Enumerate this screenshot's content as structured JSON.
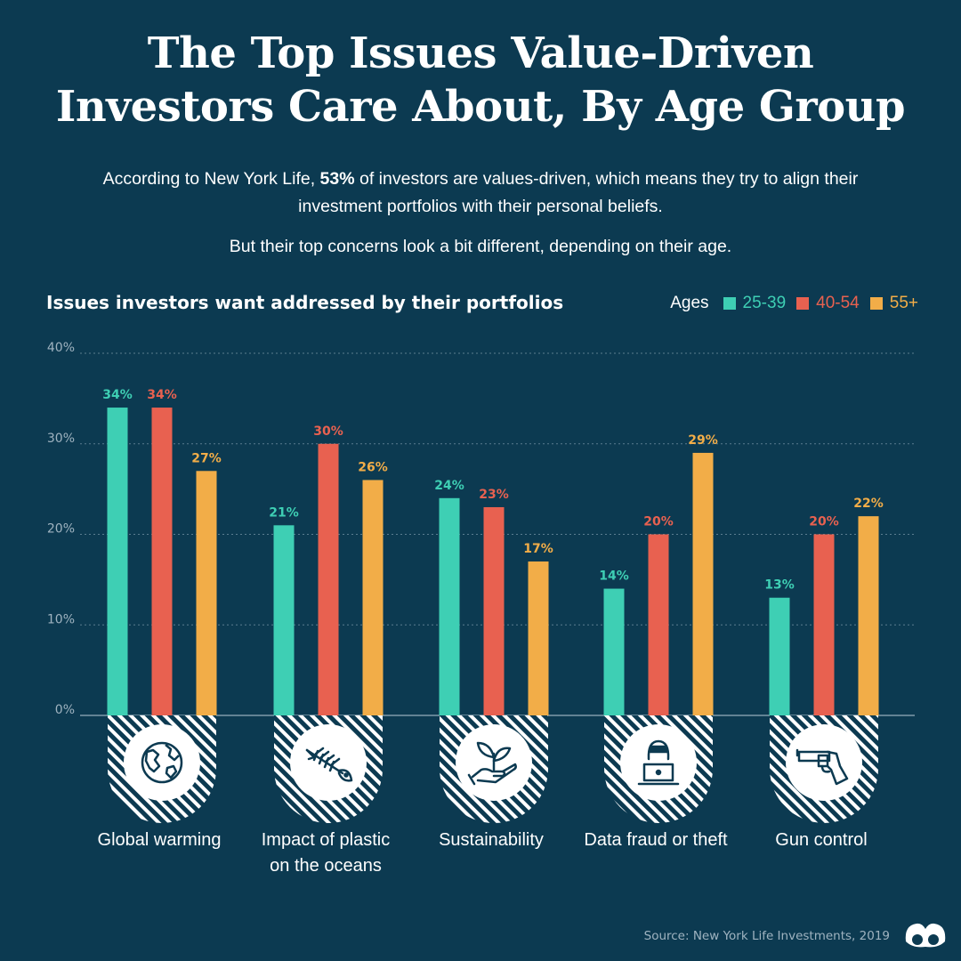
{
  "header": {
    "title_line1": "The Top Issues Value-Driven",
    "title_line2": "Investors Care About, By Age Group",
    "intro_pre": "According to New York Life, ",
    "intro_pct": "53%",
    "intro_post": " of investors are values-driven, which means they try to align their investment portfolios with their personal beliefs.",
    "intro2": "But their top concerns look a bit different, depending on their age."
  },
  "legend": {
    "prefix": "Ages",
    "items": [
      "25-39",
      "40-54",
      "55+"
    ]
  },
  "source": "Source: New York Life Investments, 2019",
  "colors": {
    "background": "#0c3a51",
    "age_25_39": "#3ecfb4",
    "age_40_54": "#e86150",
    "age_55_plus": "#f2ad48"
  },
  "icons": [
    "globe-icon",
    "fish-skeleton-icon",
    "plant-in-hand-icon",
    "hacker-laptop-icon",
    "revolver-icon"
  ],
  "chart_data": {
    "type": "bar",
    "title": "Issues investors want addressed by their portfolios",
    "categories": [
      "Global warming",
      "Impact of plastic on the oceans",
      "Sustainability",
      "Data fraud or theft",
      "Gun control"
    ],
    "category_lines": [
      [
        "Global warming"
      ],
      [
        "Impact of plastic",
        "on the oceans"
      ],
      [
        "Sustainability"
      ],
      [
        "Data fraud or theft"
      ],
      [
        "Gun control"
      ]
    ],
    "series": [
      {
        "name": "25-39",
        "values": [
          34,
          21,
          24,
          14,
          13
        ]
      },
      {
        "name": "40-54",
        "values": [
          34,
          30,
          23,
          20,
          20
        ]
      },
      {
        "name": "55+",
        "values": [
          27,
          26,
          17,
          29,
          22
        ]
      }
    ],
    "yticks": [
      "0%",
      "10%",
      "20%",
      "30%",
      "40%"
    ],
    "ylim": [
      0,
      40
    ],
    "grid": true,
    "legend_position": "top-right"
  }
}
